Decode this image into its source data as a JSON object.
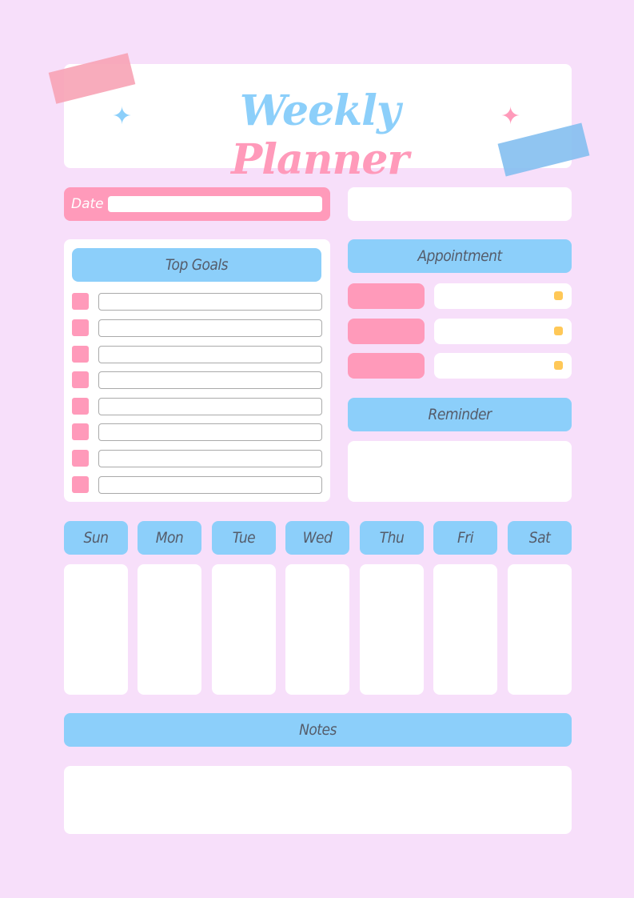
{
  "title": {
    "part1": "Weekly",
    "part2": "Planner"
  },
  "date_label": "Date",
  "top_goals": {
    "heading": "Top Goals",
    "count": 8
  },
  "appointment": {
    "heading": "Appointment",
    "rows": 3
  },
  "reminder": {
    "heading": "Reminder"
  },
  "days": [
    "Sun",
    "Mon",
    "Tue",
    "Wed",
    "Thu",
    "Fri",
    "Sat"
  ],
  "notes": {
    "heading": "Notes"
  },
  "colors": {
    "background": "#f7dffa",
    "blue": "#8ccffa",
    "pink": "#ff9aba",
    "yellow": "#ffc857",
    "text": "#555c6a"
  }
}
